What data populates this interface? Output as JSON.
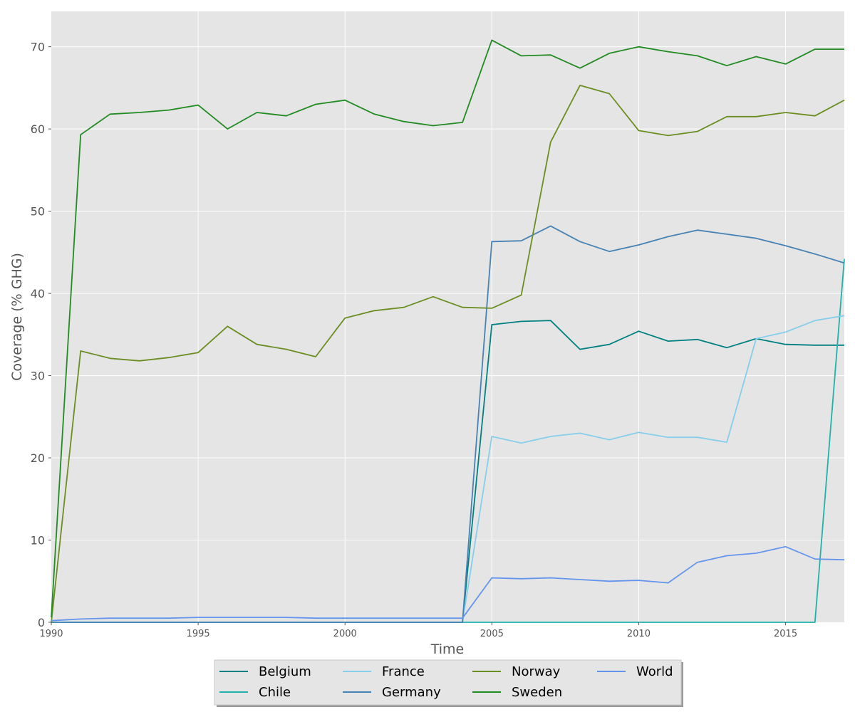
{
  "chart_data": {
    "type": "line",
    "title": "",
    "xlabel": "Time",
    "ylabel": "Coverage (% GHG)",
    "xlim": [
      1990,
      2017
    ],
    "ylim": [
      0,
      74.3
    ],
    "xticks": [
      1990,
      1995,
      2000,
      2005,
      2010,
      2015
    ],
    "yticks": [
      0,
      10,
      20,
      30,
      40,
      50,
      60,
      70
    ],
    "grid": true,
    "legend_placement": "bottom-center",
    "x": [
      1990,
      1991,
      1992,
      1993,
      1994,
      1995,
      1996,
      1997,
      1998,
      1999,
      2000,
      2001,
      2002,
      2003,
      2004,
      2005,
      2006,
      2007,
      2008,
      2009,
      2010,
      2011,
      2012,
      2013,
      2014,
      2015,
      2016,
      2017
    ],
    "series": [
      {
        "name": "Belgium",
        "color": "#008080",
        "values": [
          0,
          0,
          0,
          0,
          0,
          0,
          0,
          0,
          0,
          0,
          0,
          0,
          0,
          0,
          0,
          36.2,
          36.6,
          36.7,
          33.2,
          33.8,
          35.4,
          34.2,
          34.4,
          33.4,
          34.5,
          33.8,
          33.7,
          33.7
        ]
      },
      {
        "name": "Chile",
        "color": "#20b2aa",
        "values": [
          0,
          0,
          0,
          0,
          0,
          0,
          0,
          0,
          0,
          0,
          0,
          0,
          0,
          0,
          0,
          0,
          0,
          0,
          0,
          0,
          0,
          0,
          0,
          0,
          0,
          0,
          0,
          44.2
        ]
      },
      {
        "name": "France",
        "color": "#87ceeb",
        "values": [
          0,
          0,
          0,
          0,
          0,
          0,
          0,
          0,
          0,
          0,
          0,
          0,
          0,
          0,
          0,
          22.6,
          21.8,
          22.6,
          23.0,
          22.2,
          23.1,
          22.5,
          22.5,
          21.9,
          34.5,
          35.3,
          36.7,
          37.3
        ]
      },
      {
        "name": "Germany",
        "color": "#4682b4",
        "values": [
          0,
          0,
          0,
          0,
          0,
          0,
          0,
          0,
          0,
          0,
          0,
          0,
          0,
          0,
          0,
          46.3,
          46.4,
          48.2,
          46.3,
          45.1,
          45.9,
          46.9,
          47.7,
          47.2,
          46.7,
          45.8,
          44.8,
          43.7
        ]
      },
      {
        "name": "Norway",
        "color": "#6b8e23",
        "values": [
          0,
          33.0,
          32.1,
          31.8,
          32.2,
          32.8,
          36.0,
          33.8,
          33.2,
          32.3,
          37.0,
          37.9,
          38.3,
          39.6,
          38.3,
          38.2,
          39.8,
          58.4,
          65.3,
          64.3,
          59.8,
          59.2,
          59.7,
          61.5,
          61.5,
          62.0,
          61.6,
          63.5
        ]
      },
      {
        "name": "Sweden",
        "color": "#228b22",
        "values": [
          0.6,
          59.3,
          61.8,
          62.0,
          62.3,
          62.9,
          60.0,
          62.0,
          61.6,
          63.0,
          63.5,
          61.8,
          60.9,
          60.4,
          60.8,
          70.8,
          68.9,
          69.0,
          67.4,
          69.2,
          70.0,
          69.4,
          68.9,
          67.7,
          68.8,
          67.9,
          69.7,
          69.7
        ]
      },
      {
        "name": "World",
        "color": "#6495ed",
        "values": [
          0.2,
          0.4,
          0.5,
          0.5,
          0.5,
          0.6,
          0.6,
          0.6,
          0.6,
          0.5,
          0.5,
          0.5,
          0.5,
          0.5,
          0.5,
          5.4,
          5.3,
          5.4,
          5.2,
          5.0,
          5.1,
          4.8,
          7.3,
          8.1,
          8.4,
          9.2,
          7.7,
          7.6
        ]
      }
    ]
  }
}
